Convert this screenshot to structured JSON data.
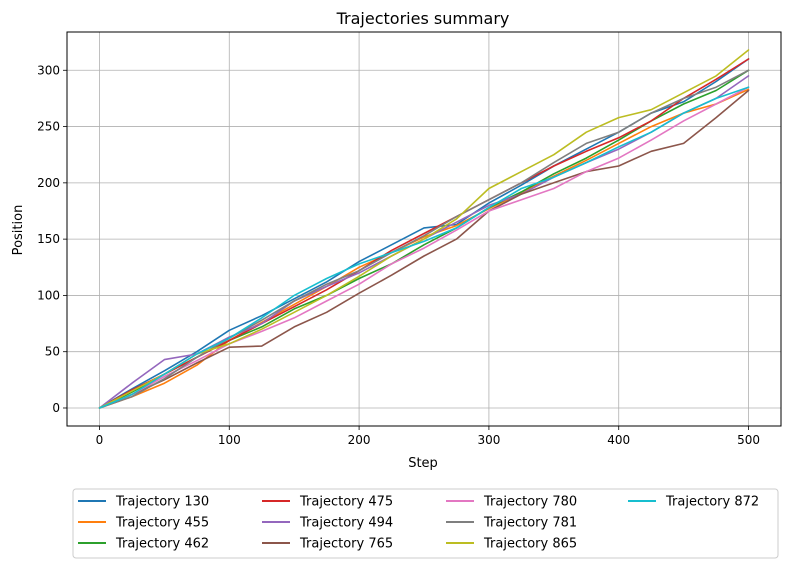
{
  "chart_data": {
    "type": "line",
    "title": "Trajectories summary",
    "xlabel": "Step",
    "ylabel": "Position",
    "xlim": [
      -25,
      525
    ],
    "ylim": [
      -16,
      334
    ],
    "xticks": [
      0,
      100,
      200,
      300,
      400,
      500
    ],
    "yticks": [
      0,
      50,
      100,
      150,
      200,
      250,
      300
    ],
    "grid": true,
    "legend_position": "bottom-center",
    "legend_columns": 4,
    "series": [
      {
        "name": "Trajectory 130",
        "color": "#1f77b4",
        "points": [
          [
            0,
            0
          ],
          [
            25,
            17
          ],
          [
            50,
            33
          ],
          [
            75,
            50
          ],
          [
            100,
            69
          ],
          [
            125,
            82
          ],
          [
            150,
            97
          ],
          [
            175,
            112
          ],
          [
            200,
            130
          ],
          [
            225,
            145
          ],
          [
            250,
            160
          ],
          [
            275,
            163
          ],
          [
            300,
            182
          ],
          [
            325,
            198
          ],
          [
            350,
            215
          ],
          [
            375,
            230
          ],
          [
            400,
            245
          ],
          [
            425,
            262
          ],
          [
            450,
            272
          ],
          [
            475,
            290
          ],
          [
            500,
            310
          ]
        ]
      },
      {
        "name": "Trajectory 455",
        "color": "#ff7f0e",
        "points": [
          [
            0,
            0
          ],
          [
            25,
            10
          ],
          [
            50,
            22
          ],
          [
            75,
            38
          ],
          [
            100,
            60
          ],
          [
            125,
            76
          ],
          [
            150,
            92
          ],
          [
            175,
            108
          ],
          [
            200,
            125
          ],
          [
            225,
            138
          ],
          [
            250,
            152
          ],
          [
            275,
            162
          ],
          [
            300,
            177
          ],
          [
            325,
            191
          ],
          [
            350,
            206
          ],
          [
            375,
            220
          ],
          [
            400,
            235
          ],
          [
            425,
            250
          ],
          [
            450,
            262
          ],
          [
            475,
            270
          ],
          [
            500,
            283
          ]
        ]
      },
      {
        "name": "Trajectory 462",
        "color": "#2ca02c",
        "points": [
          [
            0,
            0
          ],
          [
            25,
            14
          ],
          [
            50,
            30
          ],
          [
            75,
            45
          ],
          [
            100,
            60
          ],
          [
            125,
            72
          ],
          [
            150,
            88
          ],
          [
            175,
            100
          ],
          [
            200,
            115
          ],
          [
            225,
            128
          ],
          [
            250,
            145
          ],
          [
            275,
            160
          ],
          [
            300,
            178
          ],
          [
            325,
            192
          ],
          [
            350,
            208
          ],
          [
            375,
            222
          ],
          [
            400,
            238
          ],
          [
            425,
            255
          ],
          [
            450,
            270
          ],
          [
            475,
            282
          ],
          [
            500,
            300
          ]
        ]
      },
      {
        "name": "Trajectory 475",
        "color": "#d62728",
        "points": [
          [
            0,
            0
          ],
          [
            25,
            16
          ],
          [
            50,
            30
          ],
          [
            75,
            45
          ],
          [
            100,
            60
          ],
          [
            125,
            75
          ],
          [
            150,
            90
          ],
          [
            175,
            105
          ],
          [
            200,
            122
          ],
          [
            225,
            140
          ],
          [
            250,
            155
          ],
          [
            275,
            170
          ],
          [
            300,
            185
          ],
          [
            325,
            200
          ],
          [
            350,
            215
          ],
          [
            375,
            228
          ],
          [
            400,
            240
          ],
          [
            425,
            255
          ],
          [
            450,
            275
          ],
          [
            475,
            292
          ],
          [
            500,
            310
          ]
        ]
      },
      {
        "name": "Trajectory 494",
        "color": "#9467bd",
        "points": [
          [
            0,
            0
          ],
          [
            25,
            22
          ],
          [
            50,
            43
          ],
          [
            75,
            48
          ],
          [
            100,
            63
          ],
          [
            125,
            75
          ],
          [
            150,
            95
          ],
          [
            175,
            108
          ],
          [
            200,
            120
          ],
          [
            225,
            135
          ],
          [
            250,
            150
          ],
          [
            275,
            165
          ],
          [
            300,
            180
          ],
          [
            325,
            190
          ],
          [
            350,
            205
          ],
          [
            375,
            218
          ],
          [
            400,
            230
          ],
          [
            425,
            245
          ],
          [
            450,
            262
          ],
          [
            475,
            275
          ],
          [
            500,
            295
          ]
        ]
      },
      {
        "name": "Trajectory 765",
        "color": "#8c564b",
        "points": [
          [
            0,
            0
          ],
          [
            25,
            12
          ],
          [
            50,
            25
          ],
          [
            75,
            40
          ],
          [
            100,
            54
          ],
          [
            125,
            55
          ],
          [
            150,
            72
          ],
          [
            175,
            85
          ],
          [
            200,
            102
          ],
          [
            225,
            118
          ],
          [
            250,
            135
          ],
          [
            275,
            150
          ],
          [
            300,
            175
          ],
          [
            325,
            190
          ],
          [
            350,
            200
          ],
          [
            375,
            210
          ],
          [
            400,
            215
          ],
          [
            425,
            228
          ],
          [
            450,
            235
          ],
          [
            475,
            258
          ],
          [
            500,
            282
          ]
        ]
      },
      {
        "name": "Trajectory 780",
        "color": "#e377c2",
        "points": [
          [
            0,
            0
          ],
          [
            25,
            12
          ],
          [
            50,
            28
          ],
          [
            75,
            42
          ],
          [
            100,
            57
          ],
          [
            125,
            68
          ],
          [
            150,
            80
          ],
          [
            175,
            95
          ],
          [
            200,
            110
          ],
          [
            225,
            128
          ],
          [
            250,
            142
          ],
          [
            275,
            158
          ],
          [
            300,
            175
          ],
          [
            325,
            185
          ],
          [
            350,
            195
          ],
          [
            375,
            210
          ],
          [
            400,
            222
          ],
          [
            425,
            238
          ],
          [
            450,
            255
          ],
          [
            475,
            270
          ],
          [
            500,
            285
          ]
        ]
      },
      {
        "name": "Trajectory 781",
        "color": "#7f7f7f",
        "points": [
          [
            0,
            0
          ],
          [
            25,
            10
          ],
          [
            50,
            26
          ],
          [
            75,
            45
          ],
          [
            100,
            62
          ],
          [
            125,
            78
          ],
          [
            150,
            95
          ],
          [
            175,
            110
          ],
          [
            200,
            122
          ],
          [
            225,
            138
          ],
          [
            250,
            153
          ],
          [
            275,
            170
          ],
          [
            300,
            185
          ],
          [
            325,
            200
          ],
          [
            350,
            218
          ],
          [
            375,
            235
          ],
          [
            400,
            245
          ],
          [
            425,
            262
          ],
          [
            450,
            275
          ],
          [
            475,
            285
          ],
          [
            500,
            300
          ]
        ]
      },
      {
        "name": "Trajectory 865",
        "color": "#bcbd22",
        "points": [
          [
            0,
            0
          ],
          [
            25,
            15
          ],
          [
            50,
            30
          ],
          [
            75,
            48
          ],
          [
            100,
            57
          ],
          [
            125,
            70
          ],
          [
            150,
            85
          ],
          [
            175,
            100
          ],
          [
            200,
            117
          ],
          [
            225,
            135
          ],
          [
            250,
            150
          ],
          [
            275,
            168
          ],
          [
            300,
            195
          ],
          [
            325,
            210
          ],
          [
            350,
            225
          ],
          [
            375,
            245
          ],
          [
            400,
            258
          ],
          [
            425,
            265
          ],
          [
            450,
            280
          ],
          [
            475,
            295
          ],
          [
            500,
            318
          ]
        ]
      },
      {
        "name": "Trajectory 872",
        "color": "#17becf",
        "points": [
          [
            0,
            0
          ],
          [
            25,
            12
          ],
          [
            50,
            30
          ],
          [
            75,
            48
          ],
          [
            100,
            62
          ],
          [
            125,
            80
          ],
          [
            150,
            100
          ],
          [
            175,
            115
          ],
          [
            200,
            128
          ],
          [
            225,
            138
          ],
          [
            250,
            148
          ],
          [
            275,
            160
          ],
          [
            300,
            178
          ],
          [
            325,
            195
          ],
          [
            350,
            205
          ],
          [
            375,
            218
          ],
          [
            400,
            232
          ],
          [
            425,
            245
          ],
          [
            450,
            262
          ],
          [
            475,
            275
          ],
          [
            500,
            285
          ]
        ]
      }
    ]
  }
}
